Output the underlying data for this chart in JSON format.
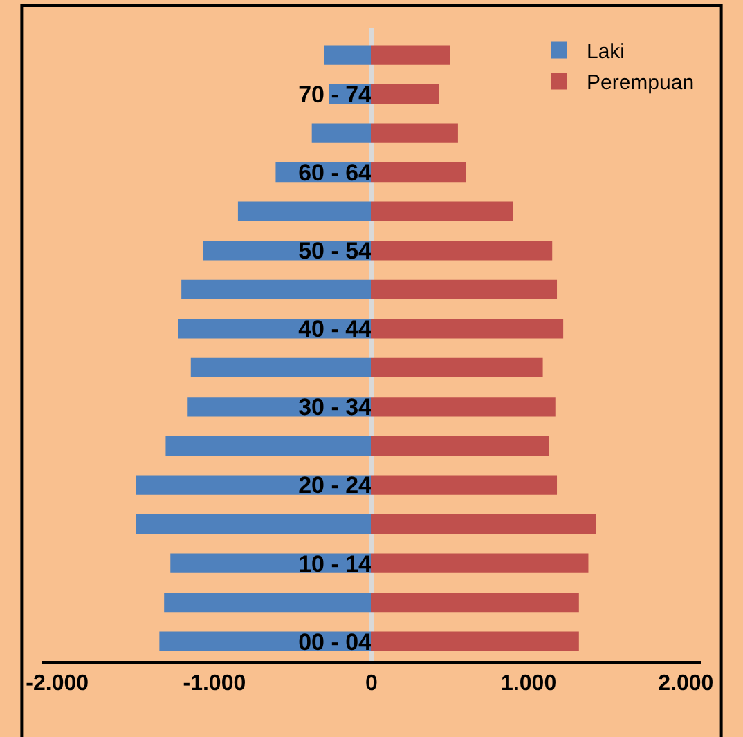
{
  "chart_data": {
    "type": "bar",
    "orientation": "horizontal",
    "stacked": true,
    "categories": [
      null,
      "70 - 74",
      null,
      "60 - 64",
      null,
      "50 - 54",
      null,
      "40 - 44",
      null,
      "30 - 34",
      null,
      "20 - 24",
      null,
      "10 - 14",
      null,
      "00 - 04"
    ],
    "series": [
      {
        "name": "Laki",
        "color": "#4f81bd",
        "values": [
          -300,
          -270,
          -380,
          -610,
          -850,
          -1070,
          -1210,
          -1230,
          -1150,
          -1170,
          -1310,
          -1500,
          -1500,
          -1280,
          -1320,
          -1350
        ]
      },
      {
        "name": "Perempuan",
        "color": "#c0504d",
        "values": [
          500,
          430,
          550,
          600,
          900,
          1150,
          1180,
          1220,
          1090,
          1170,
          1130,
          1180,
          1430,
          1380,
          1320,
          1320
        ]
      }
    ],
    "xlim": [
      -2100,
      2100
    ],
    "xticks": [
      {
        "value": -2000,
        "label": "-2.000"
      },
      {
        "value": -1000,
        "label": "-1.000"
      },
      0,
      {
        "value": 1000,
        "label": "1.000"
      },
      {
        "value": 2000,
        "label": "2.000"
      }
    ],
    "grid": false,
    "legend": "top right"
  }
}
